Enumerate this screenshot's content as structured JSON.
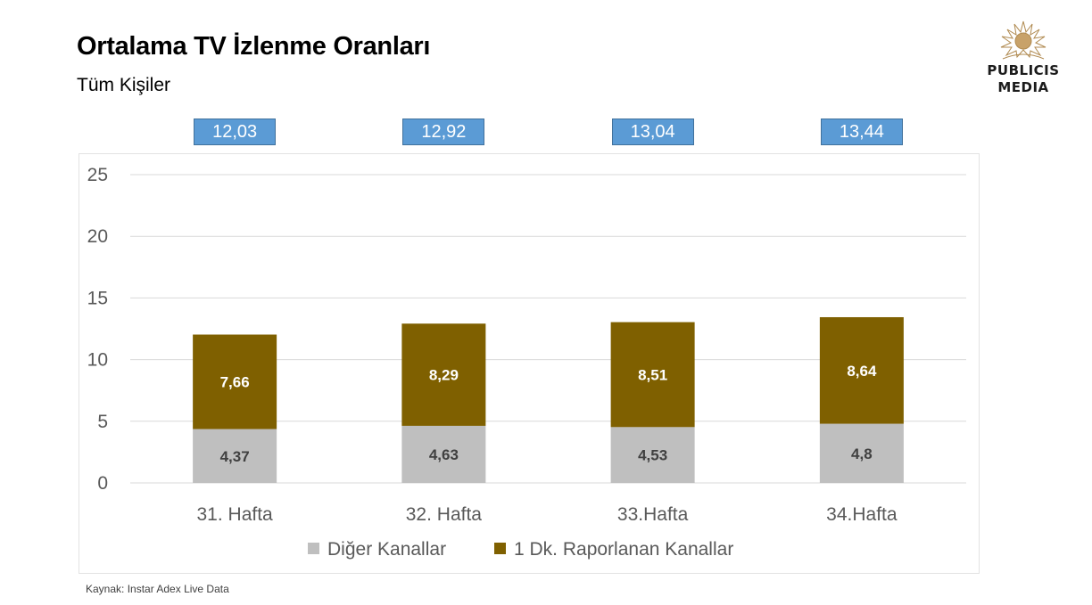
{
  "header": {
    "title": "Ortalama TV İzlenme Oranları",
    "subtitle": "Tüm Kişiler"
  },
  "logo": {
    "line1": "PUBLICIS",
    "line2": "MEDIA"
  },
  "source": "Kaynak: Instar  Adex Live Data",
  "colors": {
    "other": "#bfbfbf",
    "reported": "#7f6000",
    "total_box": "#5b9bd5",
    "grid": "#d9d9d9"
  },
  "chart_data": {
    "type": "bar",
    "stacked": true,
    "categories": [
      "31. Hafta",
      "32. Hafta",
      "33.Hafta",
      "34.Hafta"
    ],
    "series": [
      {
        "name": "Diğer Kanallar",
        "values": [
          4.37,
          4.63,
          4.53,
          4.8
        ],
        "labels": [
          "4,37",
          "4,63",
          "4,53",
          "4,8"
        ]
      },
      {
        "name": "1 Dk. Raporlanan Kanallar",
        "values": [
          7.66,
          8.29,
          8.51,
          8.64
        ],
        "labels": [
          "7,66",
          "8,29",
          "8,51",
          "8,64"
        ]
      }
    ],
    "totals": [
      "12,03",
      "12,92",
      "13,04",
      "13,44"
    ],
    "ylim": [
      0,
      25
    ],
    "yticks": [
      0,
      5,
      10,
      15,
      20,
      25
    ],
    "grid": true,
    "legend": "bottom"
  }
}
